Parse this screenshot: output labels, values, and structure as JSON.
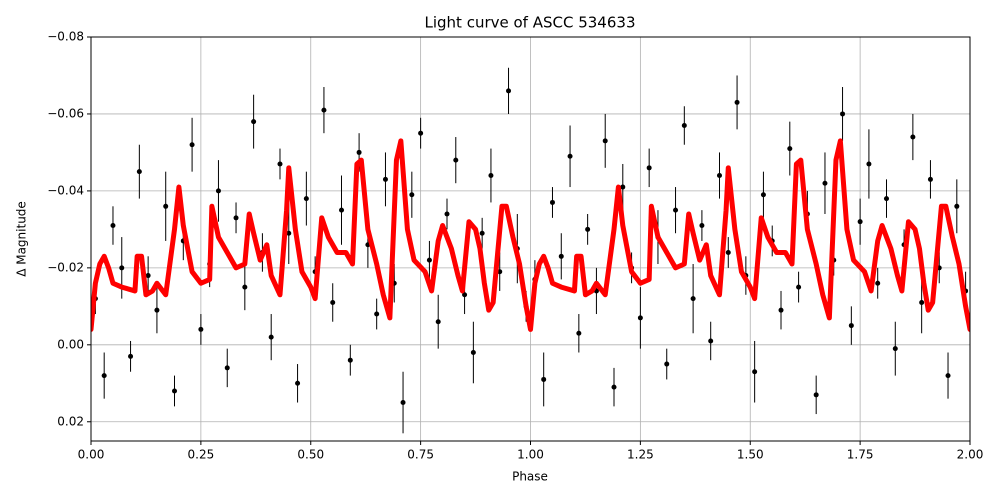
{
  "chart_data": {
    "type": "lightcurve",
    "title": "Light curve of ASCC 534633",
    "x_label": "Phase",
    "y_label": "Δ Magnitude",
    "xlim": [
      0,
      2
    ],
    "ylim": [
      0.025,
      -0.08
    ],
    "xticks": [
      {
        "value": 0,
        "label": "0.00"
      },
      {
        "value": 0.25,
        "label": "0.25"
      },
      {
        "value": 0.5,
        "label": "0.50"
      },
      {
        "value": 0.75,
        "label": "0.75"
      },
      {
        "value": 1,
        "label": "1.00"
      },
      {
        "value": 1.25,
        "label": "1.25"
      },
      {
        "value": 1.5,
        "label": "1.50"
      },
      {
        "value": 1.75,
        "label": "1.75"
      },
      {
        "value": 2,
        "label": "2.00"
      }
    ],
    "yticks": [
      {
        "value": -0.08,
        "label": "−0.08"
      },
      {
        "value": -0.06,
        "label": "−0.06"
      },
      {
        "value": -0.04,
        "label": "−0.04"
      },
      {
        "value": -0.02,
        "label": "−0.02"
      },
      {
        "value": 0,
        "label": "0.00"
      },
      {
        "value": 0.02,
        "label": "0.02"
      }
    ],
    "grid": true,
    "series": [
      {
        "type": "errorbar",
        "color": "#000000",
        "x": [
          0.01,
          0.03,
          0.05,
          0.07,
          0.09,
          0.11,
          0.13,
          0.15,
          0.17,
          0.19,
          0.21,
          0.23,
          0.25,
          0.27,
          0.29,
          0.31,
          0.33,
          0.35,
          0.37,
          0.39,
          0.41,
          0.43,
          0.45,
          0.47,
          0.49,
          0.51,
          0.53,
          0.55,
          0.57,
          0.59,
          0.61,
          0.63,
          0.65,
          0.67,
          0.69,
          0.71,
          0.73,
          0.75,
          0.77,
          0.79,
          0.81,
          0.83,
          0.85,
          0.87,
          0.89,
          0.91,
          0.93,
          0.95,
          0.97,
          0.99,
          1.01,
          1.03,
          1.05,
          1.07,
          1.09,
          1.11,
          1.13,
          1.15,
          1.17,
          1.19,
          1.21,
          1.23,
          1.25,
          1.27,
          1.29,
          1.31,
          1.33,
          1.35,
          1.37,
          1.39,
          1.41,
          1.43,
          1.45,
          1.47,
          1.49,
          1.51,
          1.53,
          1.55,
          1.57,
          1.59,
          1.61,
          1.63,
          1.65,
          1.67,
          1.69,
          1.71,
          1.73,
          1.75,
          1.77,
          1.79,
          1.81,
          1.83,
          1.85,
          1.87,
          1.89,
          1.91,
          1.93,
          1.95,
          1.97,
          1.99
        ],
        "values": [
          -0.012,
          0.008,
          -0.031,
          -0.02,
          0.003,
          -0.045,
          -0.018,
          -0.009,
          -0.036,
          0.012,
          -0.027,
          -0.052,
          -0.004,
          -0.021,
          -0.04,
          0.006,
          -0.033,
          -0.015,
          -0.058,
          -0.024,
          -0.002,
          -0.047,
          -0.029,
          0.01,
          -0.038,
          -0.019,
          -0.061,
          -0.011,
          -0.035,
          0.004,
          -0.05,
          -0.026,
          -0.008,
          -0.043,
          -0.016,
          0.015,
          -0.039,
          -0.055,
          -0.022,
          -0.006,
          -0.034,
          -0.048,
          -0.013,
          0.002,
          -0.029,
          -0.044,
          -0.019,
          -0.066,
          -0.025,
          -0.01,
          -0.017,
          0.009,
          -0.037,
          -0.023,
          -0.049,
          -0.003,
          -0.03,
          -0.014,
          -0.053,
          0.011,
          -0.041,
          -0.02,
          -0.007,
          -0.046,
          -0.028,
          0.005,
          -0.035,
          -0.057,
          -0.012,
          -0.031,
          -0.001,
          -0.044,
          -0.024,
          -0.063,
          -0.018,
          0.007,
          -0.039,
          -0.027,
          -0.009,
          -0.051,
          -0.015,
          -0.034,
          0.013,
          -0.042,
          -0.022,
          -0.06,
          -0.005,
          -0.032,
          -0.047,
          -0.016,
          -0.038,
          0.001,
          -0.026,
          -0.054,
          -0.011,
          -0.043,
          -0.02,
          0.008,
          -0.036,
          -0.014
        ],
        "errors": [
          0.004,
          0.006,
          0.005,
          0.008,
          0.004,
          0.007,
          0.005,
          0.006,
          0.009,
          0.004,
          0.005,
          0.007,
          0.004,
          0.006,
          0.008,
          0.005,
          0.004,
          0.006,
          0.007,
          0.005,
          0.006,
          0.004,
          0.008,
          0.005,
          0.007,
          0.004,
          0.006,
          0.005,
          0.009,
          0.004,
          0.005,
          0.006,
          0.004,
          0.007,
          0.005,
          0.008,
          0.006,
          0.004,
          0.005,
          0.007,
          0.004,
          0.006,
          0.005,
          0.008,
          0.004,
          0.007,
          0.005,
          0.006,
          0.009,
          0.004,
          0.005,
          0.007,
          0.004,
          0.006,
          0.008,
          0.005,
          0.004,
          0.006,
          0.007,
          0.005,
          0.006,
          0.004,
          0.008,
          0.005,
          0.007,
          0.004,
          0.006,
          0.005,
          0.009,
          0.004,
          0.005,
          0.006,
          0.004,
          0.007,
          0.005,
          0.008,
          0.006,
          0.004,
          0.005,
          0.007,
          0.004,
          0.006,
          0.005,
          0.008,
          0.004,
          0.007,
          0.005,
          0.006,
          0.009,
          0.004,
          0.005,
          0.007,
          0.004,
          0.006,
          0.008,
          0.005,
          0.004,
          0.006,
          0.007,
          0.005
        ]
      },
      {
        "type": "line",
        "color": "#ff0000",
        "x": [
          0,
          0.01,
          0.02,
          0.03,
          0.04,
          0.05,
          0.07,
          0.1,
          0.105,
          0.115,
          0.125,
          0.14,
          0.15,
          0.17,
          0.19,
          0.2,
          0.21,
          0.23,
          0.25,
          0.27,
          0.275,
          0.29,
          0.31,
          0.33,
          0.35,
          0.36,
          0.37,
          0.385,
          0.4,
          0.41,
          0.43,
          0.445,
          0.45,
          0.465,
          0.48,
          0.5,
          0.51,
          0.525,
          0.54,
          0.56,
          0.58,
          0.595,
          0.605,
          0.615,
          0.63,
          0.65,
          0.665,
          0.68,
          0.695,
          0.705,
          0.72,
          0.735,
          0.76,
          0.775,
          0.79,
          0.8,
          0.82,
          0.835,
          0.845,
          0.86,
          0.875,
          0.885,
          0.895,
          0.905,
          0.915,
          0.935,
          0.945,
          0.96,
          0.975,
          0.99,
          1,
          1.01,
          1.02,
          1.03,
          1.04,
          1.05,
          1.07,
          1.1,
          1.105,
          1.115,
          1.125,
          1.14,
          1.15,
          1.17,
          1.19,
          1.2,
          1.21,
          1.23,
          1.25,
          1.27,
          1.275,
          1.29,
          1.31,
          1.33,
          1.35,
          1.36,
          1.37,
          1.385,
          1.4,
          1.41,
          1.43,
          1.445,
          1.45,
          1.465,
          1.48,
          1.5,
          1.51,
          1.525,
          1.54,
          1.56,
          1.58,
          1.595,
          1.605,
          1.615,
          1.63,
          1.65,
          1.665,
          1.68,
          1.695,
          1.705,
          1.72,
          1.735,
          1.76,
          1.775,
          1.79,
          1.8,
          1.82,
          1.835,
          1.845,
          1.86,
          1.875,
          1.885,
          1.895,
          1.905,
          1.915,
          1.935,
          1.945,
          1.96,
          1.975,
          1.99,
          2
        ],
        "values": [
          -0.004,
          -0.016,
          -0.021,
          -0.023,
          -0.02,
          -0.016,
          -0.015,
          -0.014,
          -0.023,
          -0.023,
          -0.013,
          -0.014,
          -0.016,
          -0.013,
          -0.03,
          -0.041,
          -0.031,
          -0.019,
          -0.016,
          -0.017,
          -0.036,
          -0.028,
          -0.024,
          -0.02,
          -0.021,
          -0.034,
          -0.029,
          -0.022,
          -0.026,
          -0.018,
          -0.013,
          -0.035,
          -0.046,
          -0.03,
          -0.019,
          -0.015,
          -0.012,
          -0.033,
          -0.028,
          -0.024,
          -0.024,
          -0.021,
          -0.047,
          -0.048,
          -0.03,
          -0.021,
          -0.013,
          -0.007,
          -0.048,
          -0.053,
          -0.03,
          -0.022,
          -0.019,
          -0.014,
          -0.027,
          -0.031,
          -0.025,
          -0.018,
          -0.014,
          -0.032,
          -0.03,
          -0.025,
          -0.016,
          -0.009,
          -0.011,
          -0.036,
          -0.036,
          -0.028,
          -0.021,
          -0.01,
          -0.004,
          -0.016,
          -0.021,
          -0.023,
          -0.02,
          -0.016,
          -0.015,
          -0.014,
          -0.023,
          -0.023,
          -0.013,
          -0.014,
          -0.016,
          -0.013,
          -0.03,
          -0.041,
          -0.031,
          -0.019,
          -0.016,
          -0.017,
          -0.036,
          -0.028,
          -0.024,
          -0.02,
          -0.021,
          -0.034,
          -0.029,
          -0.022,
          -0.026,
          -0.018,
          -0.013,
          -0.035,
          -0.046,
          -0.03,
          -0.019,
          -0.015,
          -0.012,
          -0.033,
          -0.028,
          -0.024,
          -0.024,
          -0.021,
          -0.047,
          -0.048,
          -0.03,
          -0.021,
          -0.013,
          -0.007,
          -0.048,
          -0.053,
          -0.03,
          -0.022,
          -0.019,
          -0.014,
          -0.027,
          -0.031,
          -0.025,
          -0.018,
          -0.014,
          -0.032,
          -0.03,
          -0.025,
          -0.016,
          -0.009,
          -0.011,
          -0.036,
          -0.036,
          -0.028,
          -0.021,
          -0.01,
          -0.004
        ]
      }
    ]
  }
}
